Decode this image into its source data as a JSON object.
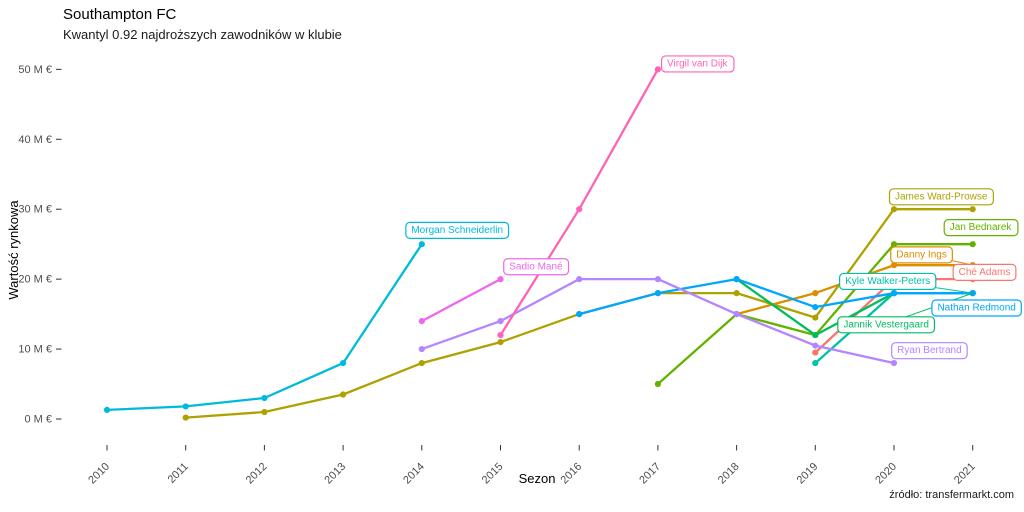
{
  "header": {
    "title": "Southampton FC",
    "subtitle": "Kwantyl 0.92 najdroższych zawodników w klubie"
  },
  "caption": "źródło: transfermarkt.com",
  "chart_data": {
    "type": "line",
    "title": "Southampton FC",
    "subtitle": "Kwantyl 0.92 najdroższych zawodników w klubie",
    "xlabel": "Sezon",
    "ylabel": "Wartość rynkowa",
    "unit": "M €",
    "grid": false,
    "legend": "none (direct labels in boxes)",
    "xlim": [
      2009.4,
      2021.7
    ],
    "ylim": [
      0,
      52
    ],
    "x_ticks": [
      2010,
      2011,
      2012,
      2013,
      2014,
      2015,
      2016,
      2017,
      2018,
      2019,
      2020,
      2021
    ],
    "y_ticks": [
      {
        "value": 0,
        "label": "0 M €"
      },
      {
        "value": 10,
        "label": "10 M €"
      },
      {
        "value": 20,
        "label": "20 M €"
      },
      {
        "value": 30,
        "label": "30 M €"
      },
      {
        "value": 40,
        "label": "40 M €"
      },
      {
        "value": 50,
        "label": "50 M €"
      }
    ],
    "series": [
      {
        "name": "Ché Adams",
        "color": "#F8766D",
        "x": [
          2019,
          2020,
          2021
        ],
        "values": [
          9.5,
          20,
          20
        ],
        "label": {
          "x": 2021.15,
          "y": 21.1,
          "connector": false
        }
      },
      {
        "name": "Danny Ings",
        "color": "#DB8E00",
        "x": [
          2018,
          2019,
          2020,
          2021
        ],
        "values": [
          15,
          18,
          22,
          22
        ],
        "label": {
          "x": 2020.35,
          "y": 23.6,
          "connector": true
        }
      },
      {
        "name": "James Ward-Prowse",
        "color": "#AEA200",
        "x": [
          2011,
          2012,
          2013,
          2014,
          2015,
          2016,
          2017,
          2018,
          2019,
          2020,
          2021
        ],
        "values": [
          0.2,
          1,
          3.5,
          8,
          11,
          15,
          18,
          18,
          14.5,
          30,
          30
        ],
        "label": {
          "x": 2020.6,
          "y": 31.9,
          "connector": false
        }
      },
      {
        "name": "Jan Bednarek",
        "color": "#64B200",
        "x": [
          2017,
          2018,
          2019,
          2020,
          2021
        ],
        "values": [
          5,
          15,
          12,
          25,
          25
        ],
        "label": {
          "x": 2021.1,
          "y": 27.5,
          "connector": false
        }
      },
      {
        "name": "Jannik Vestergaard",
        "color": "#00BD5C",
        "x": [
          2018,
          2019,
          2020,
          2021
        ],
        "values": [
          20,
          12,
          18,
          18
        ],
        "label": {
          "x": 2019.9,
          "y": 13.6,
          "connector": true
        }
      },
      {
        "name": "Kyle Walker-Peters",
        "color": "#00C1A7",
        "x": [
          2019,
          2020,
          2021
        ],
        "values": [
          8,
          18,
          18
        ],
        "label": {
          "x": 2019.92,
          "y": 19.8,
          "connector": true
        }
      },
      {
        "name": "Morgan Schneiderlin",
        "color": "#00BADE",
        "x": [
          2010,
          2011,
          2012,
          2013,
          2014
        ],
        "values": [
          1.3,
          1.8,
          3,
          8,
          25
        ],
        "label": {
          "x": 2014.45,
          "y": 27.1,
          "connector": false
        }
      },
      {
        "name": "Nathan Redmond",
        "color": "#00A6FF",
        "x": [
          2016,
          2017,
          2018,
          2019,
          2020,
          2021
        ],
        "values": [
          15,
          18,
          20,
          16,
          18,
          18
        ],
        "label": {
          "x": 2021.05,
          "y": 16.0,
          "connector": false
        }
      },
      {
        "name": "Ryan Bertrand",
        "color": "#B385FF",
        "x": [
          2014,
          2015,
          2016,
          2017,
          2018,
          2019,
          2020
        ],
        "values": [
          10,
          14,
          20,
          20,
          15,
          10.5,
          8
        ],
        "label": {
          "x": 2020.45,
          "y": 9.9,
          "connector": false
        }
      },
      {
        "name": "Sadio Mané",
        "color": "#EF67EB",
        "x": [
          2014,
          2015
        ],
        "values": [
          14,
          20
        ],
        "label": {
          "x": 2015.45,
          "y": 21.9,
          "connector": false
        }
      },
      {
        "name": "Virgil van Dijk",
        "color": "#FF63B6",
        "x": [
          2015,
          2016,
          2017
        ],
        "values": [
          12,
          30,
          50
        ],
        "label": {
          "x": 2017.5,
          "y": 50.9,
          "connector": false
        }
      }
    ]
  }
}
